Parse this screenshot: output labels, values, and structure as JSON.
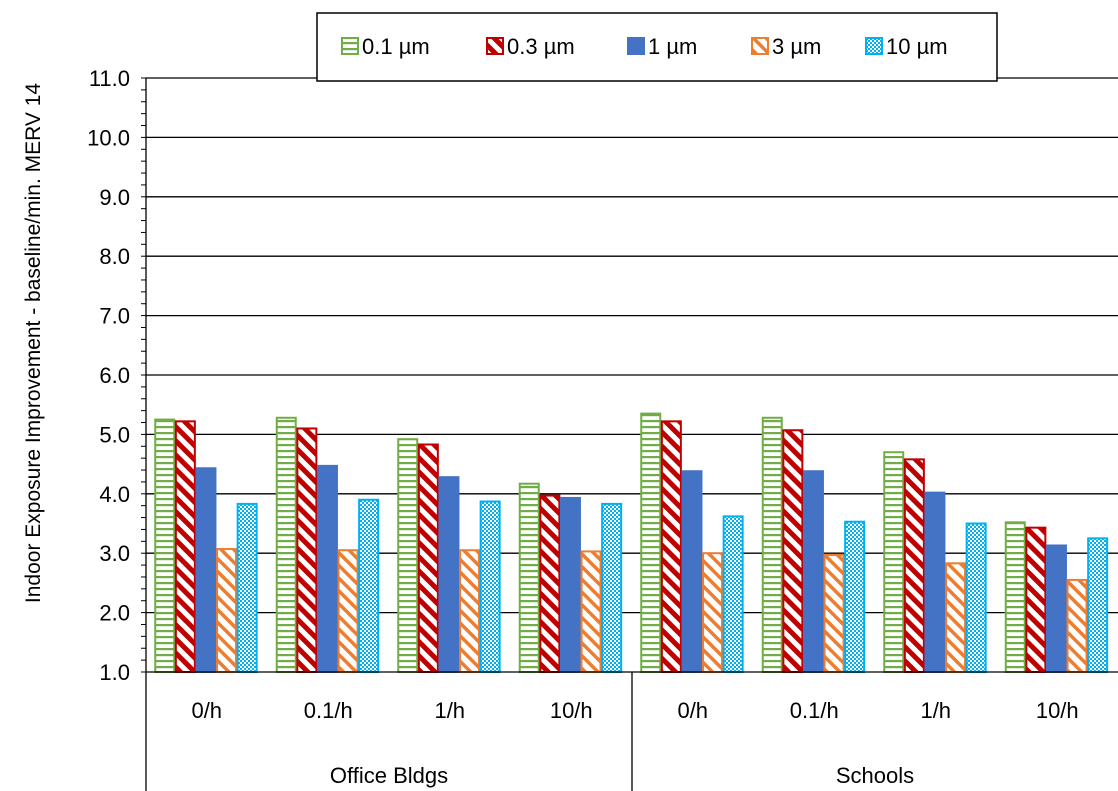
{
  "chart_data": {
    "type": "bar",
    "ylabel": "Indoor Exposure Improvement - baseline/min. MERV 14",
    "ylim": [
      1.0,
      11.0
    ],
    "yticks": [
      "1.0",
      "2.0",
      "3.0",
      "4.0",
      "5.0",
      "6.0",
      "7.0",
      "8.0",
      "9.0",
      "10.0",
      "11.0"
    ],
    "grid": true,
    "legend_position": "top",
    "groups": [
      "Office Bldgs",
      "Schools"
    ],
    "categories": [
      "0/h",
      "0.1/h",
      "1/h",
      "10/h",
      "0/h",
      "0.1/h",
      "1/h",
      "10/h"
    ],
    "series": [
      {
        "name": "0.1 µm",
        "color": "#70AD47",
        "pattern": "horizontal-lines",
        "values": [
          5.25,
          5.28,
          4.92,
          4.17,
          5.35,
          5.28,
          4.7,
          3.52
        ]
      },
      {
        "name": "0.3 µm",
        "color": "#C00000",
        "pattern": "diagonal-stripes",
        "values": [
          5.22,
          5.1,
          4.83,
          3.97,
          5.22,
          5.07,
          4.58,
          3.43
        ]
      },
      {
        "name": "1 µm",
        "color": "#4472C4",
        "pattern": "solid",
        "values": [
          4.43,
          4.47,
          4.28,
          3.93,
          4.38,
          4.38,
          4.02,
          3.13
        ]
      },
      {
        "name": "3 µm",
        "color": "#ED7D31",
        "pattern": "light-diagonal",
        "values": [
          3.07,
          3.05,
          3.05,
          3.03,
          3.0,
          2.97,
          2.83,
          2.55
        ]
      },
      {
        "name": "10 µm",
        "color": "#00B0F0",
        "pattern": "checker",
        "values": [
          3.83,
          3.9,
          3.87,
          3.83,
          3.62,
          3.53,
          3.5,
          3.25
        ]
      }
    ]
  }
}
